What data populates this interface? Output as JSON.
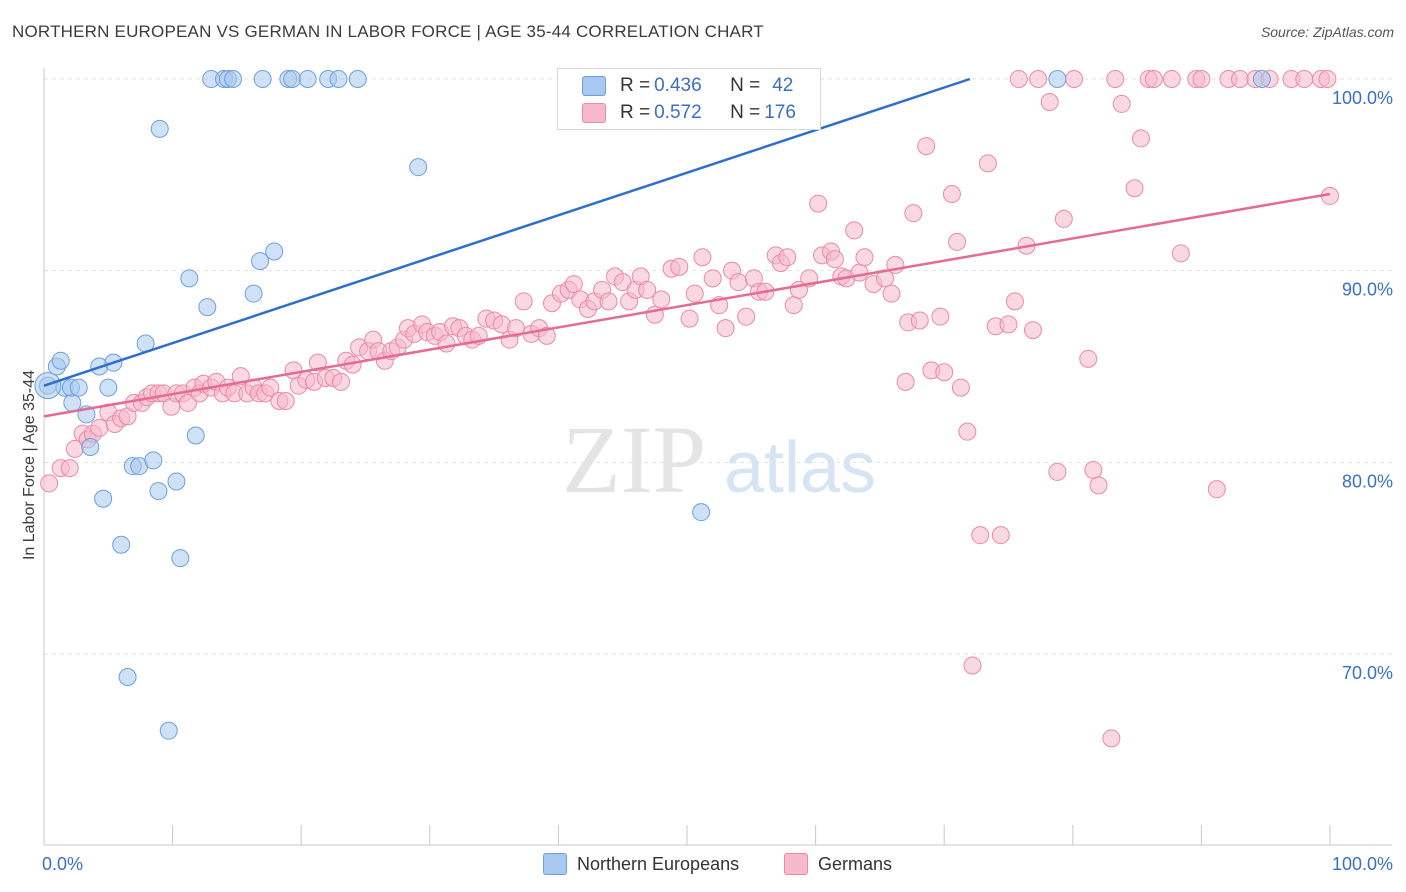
{
  "header": {
    "title": "NORTHERN EUROPEAN VS GERMAN IN LABOR FORCE | AGE 35-44 CORRELATION CHART",
    "source": "Source: ZipAtlas.com"
  },
  "watermark": {
    "zip": "ZIP",
    "atlas": "atlas"
  },
  "legend": {
    "rows": [
      {
        "r_label": "R = ",
        "r_value": "0.436",
        "n_label": "N = ",
        "n_value": "42",
        "color": "#a8c8ef"
      },
      {
        "r_label": "R = ",
        "r_value": "0.572",
        "n_label": "N = ",
        "n_value": "176",
        "color": "#f6b8cb"
      }
    ],
    "bottom": [
      "Northern Europeans",
      "Germans"
    ]
  },
  "chart_data": {
    "type": "scatter",
    "title": "NORTHERN EUROPEAN VS GERMAN IN LABOR FORCE | AGE 35-44 CORRELATION CHART",
    "xlabel": "",
    "ylabel": "In Labor Force | Age 35-44",
    "xlim": [
      0,
      100
    ],
    "ylim": [
      60,
      102
    ],
    "x_tick_labels": [
      "0.0%",
      "100.0%"
    ],
    "y_ticks": [
      70,
      80,
      90,
      100
    ],
    "y_tick_labels": [
      "70.0%",
      "80.0%",
      "90.0%",
      "100.0%"
    ],
    "grid": true,
    "legend_position": "top-center",
    "series": [
      {
        "name": "Northern Europeans",
        "color": "#a8c8ef",
        "stroke": "#6f9fda",
        "line_color": "#2f6fcc",
        "trend": {
          "x": [
            0,
            72
          ],
          "y": [
            84.0,
            100.0
          ]
        },
        "points": [
          [
            0.3,
            84.0
          ],
          [
            1.0,
            85.0
          ],
          [
            1.3,
            85.3
          ],
          [
            1.6,
            83.9
          ],
          [
            2.2,
            83.1
          ],
          [
            2.1,
            83.9
          ],
          [
            2.7,
            83.9
          ],
          [
            3.3,
            82.5
          ],
          [
            3.6,
            80.8
          ],
          [
            4.3,
            85.0
          ],
          [
            4.6,
            78.1
          ],
          [
            5.0,
            83.9
          ],
          [
            5.4,
            85.2
          ],
          [
            6.0,
            75.7
          ],
          [
            6.5,
            68.8
          ],
          [
            6.9,
            79.8
          ],
          [
            7.4,
            79.8
          ],
          [
            7.9,
            86.2
          ],
          [
            8.5,
            80.1
          ],
          [
            8.9,
            78.5
          ],
          [
            9.0,
            97.4
          ],
          [
            9.7,
            66.0
          ],
          [
            10.3,
            79.0
          ],
          [
            10.6,
            75.0
          ],
          [
            11.3,
            89.6
          ],
          [
            11.8,
            81.4
          ],
          [
            12.7,
            88.1
          ],
          [
            13.0,
            100.0
          ],
          [
            14.0,
            100.0
          ],
          [
            14.3,
            100.0
          ],
          [
            14.7,
            100.0
          ],
          [
            16.3,
            88.8
          ],
          [
            16.8,
            90.5
          ],
          [
            17.0,
            100.0
          ],
          [
            17.9,
            91.0
          ],
          [
            19.0,
            100.0
          ],
          [
            19.3,
            100.0
          ],
          [
            20.5,
            100.0
          ],
          [
            22.1,
            100.0
          ],
          [
            22.9,
            100.0
          ],
          [
            24.4,
            100.0
          ],
          [
            29.1,
            95.4
          ],
          [
            51.1,
            77.4
          ],
          [
            78.8,
            100.0
          ],
          [
            94.7,
            100.0
          ]
        ]
      },
      {
        "name": "Germans",
        "color": "#f6b8cb",
        "stroke": "#e98aa6",
        "line_color": "#e46b93",
        "trend": {
          "x": [
            0,
            100
          ],
          "y": [
            82.4,
            94.0
          ]
        },
        "points": [
          [
            0.4,
            78.9
          ],
          [
            1.3,
            79.7
          ],
          [
            2.0,
            79.7
          ],
          [
            2.4,
            80.7
          ],
          [
            3.0,
            81.5
          ],
          [
            3.4,
            81.2
          ],
          [
            3.8,
            81.5
          ],
          [
            4.3,
            81.8
          ],
          [
            5.0,
            82.6
          ],
          [
            5.5,
            82.0
          ],
          [
            6.0,
            82.3
          ],
          [
            6.5,
            82.4
          ],
          [
            7.0,
            83.1
          ],
          [
            7.6,
            83.1
          ],
          [
            8.0,
            83.4
          ],
          [
            8.4,
            83.6
          ],
          [
            8.9,
            83.6
          ],
          [
            9.3,
            83.6
          ],
          [
            9.9,
            82.9
          ],
          [
            10.3,
            83.6
          ],
          [
            10.8,
            83.6
          ],
          [
            11.2,
            83.1
          ],
          [
            11.7,
            83.9
          ],
          [
            12.1,
            83.6
          ],
          [
            12.4,
            84.1
          ],
          [
            13.0,
            83.9
          ],
          [
            13.4,
            84.2
          ],
          [
            13.9,
            83.6
          ],
          [
            14.3,
            83.9
          ],
          [
            14.8,
            83.6
          ],
          [
            15.3,
            84.5
          ],
          [
            15.8,
            83.6
          ],
          [
            16.3,
            83.9
          ],
          [
            16.7,
            83.6
          ],
          [
            17.2,
            83.6
          ],
          [
            17.6,
            83.9
          ],
          [
            18.3,
            83.2
          ],
          [
            18.8,
            83.2
          ],
          [
            19.4,
            84.8
          ],
          [
            19.8,
            84.0
          ],
          [
            20.4,
            84.3
          ],
          [
            21.0,
            84.2
          ],
          [
            21.3,
            85.2
          ],
          [
            21.9,
            84.4
          ],
          [
            22.5,
            84.4
          ],
          [
            23.1,
            84.2
          ],
          [
            23.5,
            85.3
          ],
          [
            24.0,
            85.1
          ],
          [
            24.5,
            86.0
          ],
          [
            25.2,
            85.8
          ],
          [
            25.6,
            86.4
          ],
          [
            26.0,
            85.8
          ],
          [
            26.5,
            85.3
          ],
          [
            27.0,
            85.8
          ],
          [
            27.5,
            86.0
          ],
          [
            28.0,
            86.4
          ],
          [
            28.3,
            87.0
          ],
          [
            28.8,
            86.7
          ],
          [
            29.4,
            87.2
          ],
          [
            29.8,
            86.8
          ],
          [
            30.4,
            86.6
          ],
          [
            30.8,
            86.8
          ],
          [
            31.3,
            86.2
          ],
          [
            31.8,
            87.1
          ],
          [
            32.3,
            87.0
          ],
          [
            32.8,
            86.6
          ],
          [
            33.3,
            86.4
          ],
          [
            33.8,
            86.6
          ],
          [
            34.4,
            87.5
          ],
          [
            35.0,
            87.4
          ],
          [
            35.6,
            87.2
          ],
          [
            36.2,
            86.4
          ],
          [
            36.7,
            87.0
          ],
          [
            37.3,
            88.4
          ],
          [
            37.9,
            86.7
          ],
          [
            38.5,
            87.0
          ],
          [
            39.1,
            86.6
          ],
          [
            39.5,
            88.3
          ],
          [
            40.2,
            88.8
          ],
          [
            40.8,
            89.0
          ],
          [
            41.2,
            89.3
          ],
          [
            41.7,
            88.5
          ],
          [
            42.3,
            88.0
          ],
          [
            42.8,
            88.4
          ],
          [
            43.4,
            89.0
          ],
          [
            43.9,
            88.4
          ],
          [
            44.4,
            89.7
          ],
          [
            45.0,
            89.4
          ],
          [
            45.5,
            88.4
          ],
          [
            46.0,
            89.0
          ],
          [
            46.4,
            89.7
          ],
          [
            46.9,
            89.0
          ],
          [
            47.5,
            87.7
          ],
          [
            48.0,
            88.5
          ],
          [
            48.8,
            90.1
          ],
          [
            49.4,
            90.2
          ],
          [
            50.2,
            87.5
          ],
          [
            50.6,
            88.8
          ],
          [
            51.2,
            90.7
          ],
          [
            52.0,
            89.6
          ],
          [
            52.5,
            88.2
          ],
          [
            53.0,
            87.0
          ],
          [
            53.5,
            90.0
          ],
          [
            54.0,
            89.4
          ],
          [
            54.6,
            87.6
          ],
          [
            55.2,
            89.6
          ],
          [
            55.6,
            88.9
          ],
          [
            56.1,
            88.9
          ],
          [
            56.9,
            90.8
          ],
          [
            57.3,
            90.4
          ],
          [
            57.8,
            90.7
          ],
          [
            58.3,
            88.2
          ],
          [
            58.7,
            89.0
          ],
          [
            59.5,
            89.6
          ],
          [
            60.2,
            93.5
          ],
          [
            60.5,
            90.8
          ],
          [
            61.2,
            91.0
          ],
          [
            61.5,
            90.6
          ],
          [
            62.0,
            89.7
          ],
          [
            62.4,
            89.6
          ],
          [
            63.0,
            92.1
          ],
          [
            63.4,
            89.9
          ],
          [
            63.8,
            90.7
          ],
          [
            64.5,
            89.3
          ],
          [
            65.4,
            89.6
          ],
          [
            65.9,
            88.8
          ],
          [
            66.2,
            90.3
          ],
          [
            67.2,
            87.3
          ],
          [
            67.0,
            84.2
          ],
          [
            67.6,
            93.0
          ],
          [
            68.1,
            87.4
          ],
          [
            68.6,
            96.5
          ],
          [
            69.0,
            84.8
          ],
          [
            69.7,
            87.6
          ],
          [
            70.0,
            84.7
          ],
          [
            70.6,
            94.0
          ],
          [
            71.0,
            91.5
          ],
          [
            71.3,
            83.9
          ],
          [
            71.8,
            81.6
          ],
          [
            72.8,
            76.2
          ],
          [
            72.2,
            69.4
          ],
          [
            73.4,
            95.6
          ],
          [
            74.0,
            87.1
          ],
          [
            74.4,
            76.2
          ],
          [
            75.0,
            87.2
          ],
          [
            75.5,
            88.4
          ],
          [
            75.8,
            100.0
          ],
          [
            76.4,
            91.3
          ],
          [
            76.9,
            86.9
          ],
          [
            77.3,
            100.0
          ],
          [
            78.2,
            98.8
          ],
          [
            78.8,
            79.5
          ],
          [
            79.3,
            92.7
          ],
          [
            80.1,
            100.0
          ],
          [
            81.2,
            85.4
          ],
          [
            81.6,
            79.6
          ],
          [
            82.0,
            78.8
          ],
          [
            83.0,
            65.6
          ],
          [
            83.3,
            100.0
          ],
          [
            83.8,
            98.7
          ],
          [
            84.8,
            94.3
          ],
          [
            85.3,
            96.9
          ],
          [
            85.9,
            100.0
          ],
          [
            86.3,
            100.0
          ],
          [
            87.7,
            100.0
          ],
          [
            88.4,
            90.9
          ],
          [
            89.6,
            100.0
          ],
          [
            90.0,
            100.0
          ],
          [
            91.2,
            78.6
          ],
          [
            92.1,
            100.0
          ],
          [
            93.0,
            100.0
          ],
          [
            94.2,
            100.0
          ],
          [
            95.3,
            100.0
          ],
          [
            97.0,
            100.0
          ],
          [
            98.0,
            100.0
          ],
          [
            99.3,
            100.0
          ],
          [
            99.8,
            100.0
          ],
          [
            100.0,
            93.9
          ]
        ]
      }
    ]
  }
}
